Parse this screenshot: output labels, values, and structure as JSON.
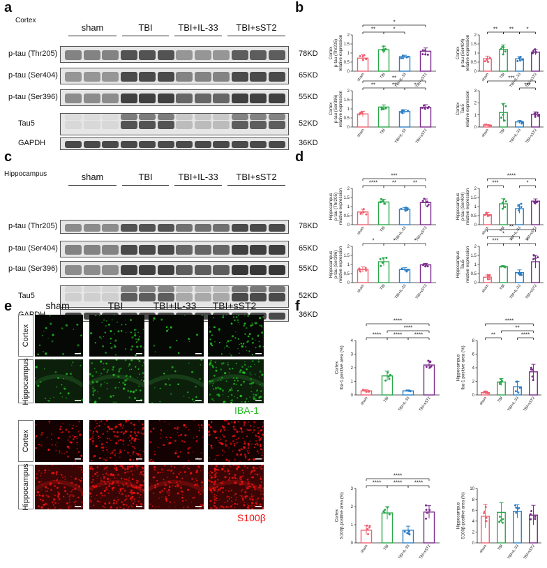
{
  "panels": {
    "a": "a",
    "b": "b",
    "c": "c",
    "d": "d",
    "e": "e",
    "f": "f"
  },
  "regions": {
    "cortex": "Cortex",
    "hippocampus": "Hippocampus"
  },
  "groups": [
    "sham",
    "TBI",
    "TBI+IL-33",
    "TBI+sST2"
  ],
  "blots": {
    "rows": [
      {
        "label": "p-tau (Thr205)",
        "kd": "78KD"
      },
      {
        "label": "p-tau (Ser404)",
        "kd": "65KD"
      },
      {
        "label": "p-tau (Ser396)",
        "kd": "55KD"
      },
      {
        "label": "Tau5",
        "kd": "52KD"
      },
      {
        "label": "GAPDH",
        "kd": "36KD"
      }
    ]
  },
  "micro": {
    "cortex_label": "Cortex",
    "hippocampus_label": "Hippocampus",
    "iba1": "IBA-1",
    "s100": "S100β",
    "iba_color": "#22bb22",
    "s100_color": "#ee1111"
  },
  "colors": {
    "sham": "#f06070",
    "TBI": "#2aa84a",
    "TBI+IL-33": "#2b7fc6",
    "TBI+sST2": "#7a2a8a"
  },
  "chart_data": [
    {
      "type": "bar",
      "panel": "b",
      "categories": [
        "sham",
        "TBI",
        "TBI+IL-33",
        "TBI+sST2"
      ],
      "ylabel": "Cortex p-tau (Thr205) relative expression",
      "ylim": [
        0,
        2.0
      ],
      "ticks": [
        0,
        0.5,
        1.0,
        1.5,
        2.0
      ],
      "values": [
        0.72,
        1.18,
        0.8,
        1.1
      ],
      "errors": [
        0.18,
        0.2,
        0.08,
        0.18
      ],
      "sig": [
        [
          0,
          1,
          "**"
        ],
        [
          1,
          2,
          "*"
        ],
        [
          0,
          3,
          "*"
        ]
      ]
    },
    {
      "type": "bar",
      "panel": "b",
      "categories": [
        "sham",
        "TBI",
        "TBI+IL-33",
        "TBI+sST2"
      ],
      "ylabel": "Cortex p-tau (Ser404) relative expression",
      "ylim": [
        0,
        2.0
      ],
      "ticks": [
        0,
        0.5,
        1.0,
        1.5,
        2.0
      ],
      "values": [
        0.68,
        1.2,
        0.68,
        1.05
      ],
      "errors": [
        0.15,
        0.25,
        0.12,
        0.15
      ],
      "sig": [
        [
          0,
          1,
          "**"
        ],
        [
          1,
          2,
          "**"
        ],
        [
          2,
          3,
          "*"
        ]
      ]
    },
    {
      "type": "bar",
      "panel": "b",
      "categories": [
        "sham",
        "TBI",
        "TBI+IL-33",
        "TBI+sST2"
      ],
      "ylabel": "Cortex p-tau (Ser396) relative expression",
      "ylim": [
        0,
        2.0
      ],
      "ticks": [
        0,
        0.5,
        1.0,
        1.5,
        2.0
      ],
      "values": [
        0.72,
        1.1,
        0.85,
        1.08
      ],
      "errors": [
        0.15,
        0.12,
        0.1,
        0.15
      ],
      "sig": [
        [
          0,
          1,
          "**"
        ],
        [
          1,
          2,
          "**"
        ],
        [
          2,
          3,
          "*"
        ],
        [
          0,
          3,
          "**"
        ]
      ]
    },
    {
      "type": "bar",
      "panel": "b",
      "categories": [
        "sham",
        "TBI",
        "TBI+IL-33",
        "TBI+sST2"
      ],
      "ylabel": "Cortex Tau5 relative expression",
      "ylim": [
        0,
        3
      ],
      "ticks": [
        0,
        1,
        2,
        3
      ],
      "values": [
        0.15,
        1.2,
        0.42,
        1.05
      ],
      "errors": [
        0.05,
        0.75,
        0.12,
        0.2
      ],
      "sig": [
        [
          0,
          3,
          "***"
        ],
        [
          2,
          3,
          "***"
        ]
      ]
    },
    {
      "type": "bar",
      "panel": "d",
      "categories": [
        "sham",
        "TBI",
        "TBI+IL-33",
        "TBI+sST2"
      ],
      "ylabel": "Hippocampus p-tau (Thr205) relative expression",
      "ylim": [
        0,
        2.0
      ],
      "ticks": [
        0,
        0.5,
        1.0,
        1.5,
        2.0
      ],
      "values": [
        0.7,
        1.25,
        0.85,
        1.22
      ],
      "errors": [
        0.15,
        0.15,
        0.1,
        0.2
      ],
      "sig": [
        [
          0,
          1,
          "****"
        ],
        [
          1,
          2,
          "**"
        ],
        [
          2,
          3,
          "**"
        ],
        [
          0,
          3,
          "***"
        ]
      ]
    },
    {
      "type": "bar",
      "panel": "d",
      "categories": [
        "sham",
        "TBI",
        "TBI+IL-33",
        "TBI+sST2"
      ],
      "ylabel": "Hippocampus p-tau (Ser404) relative expression",
      "ylim": [
        0,
        2.0
      ],
      "ticks": [
        0,
        0.5,
        1.0,
        1.5,
        2.0
      ],
      "values": [
        0.55,
        1.15,
        0.88,
        1.3
      ],
      "errors": [
        0.12,
        0.28,
        0.25,
        0.12
      ],
      "sig": [
        [
          0,
          1,
          "***"
        ],
        [
          2,
          3,
          "*"
        ],
        [
          0,
          3,
          "****"
        ]
      ]
    },
    {
      "type": "bar",
      "panel": "d",
      "categories": [
        "sham",
        "TBI",
        "TBI+IL-33",
        "TBI+sST2"
      ],
      "ylabel": "Hippocampus p-tau (Ser396) relative expression",
      "ylim": [
        0,
        2.0
      ],
      "ticks": [
        0,
        0.5,
        1.0,
        1.5,
        2.0
      ],
      "values": [
        0.72,
        1.15,
        0.72,
        0.98
      ],
      "errors": [
        0.15,
        0.22,
        0.1,
        0.08
      ],
      "sig": [
        [
          0,
          1,
          "*"
        ],
        [
          1,
          2,
          "*"
        ],
        [
          2,
          3,
          "*"
        ]
      ]
    },
    {
      "type": "bar",
      "panel": "d",
      "categories": [
        "sham",
        "TBI",
        "TBI+IL-33",
        "TBI+sST2"
      ],
      "ylabel": "Hippocampus Tau5 relative expression",
      "ylim": [
        0,
        2.0
      ],
      "ticks": [
        0,
        0.5,
        1.0,
        1.5,
        2.0
      ],
      "values": [
        0.3,
        0.88,
        0.55,
        1.15
      ],
      "errors": [
        0.12,
        0.05,
        0.15,
        0.35
      ],
      "sig": [
        [
          0,
          1,
          "***"
        ],
        [
          1,
          2,
          "*"
        ],
        [
          2,
          3,
          "*"
        ],
        [
          0,
          2,
          "*"
        ],
        [
          0,
          3,
          "**"
        ]
      ]
    },
    {
      "type": "bar",
      "panel": "f",
      "categories": [
        "sham",
        "TBI",
        "TBI+IL-33",
        "TBI+sST2"
      ],
      "ylabel": "Cortex Iba-1 positive area (%)",
      "ylim": [
        0,
        4
      ],
      "ticks": [
        0,
        1,
        2,
        3,
        4
      ],
      "values": [
        0.3,
        1.4,
        0.3,
        2.2
      ],
      "errors": [
        0.08,
        0.35,
        0.05,
        0.3
      ],
      "sig": [
        [
          0,
          1,
          "****"
        ],
        [
          1,
          2,
          "****"
        ],
        [
          2,
          3,
          "****"
        ],
        [
          1,
          3,
          "****"
        ],
        [
          0,
          3,
          "****"
        ]
      ]
    },
    {
      "type": "bar",
      "panel": "f",
      "categories": [
        "sham",
        "TBI",
        "TBI+IL-33",
        "TBI+sST2"
      ],
      "ylabel": "Hippocampus Iba-1 positive area (%)",
      "ylim": [
        0,
        8
      ],
      "ticks": [
        0,
        2,
        4,
        6,
        8
      ],
      "values": [
        0.35,
        1.9,
        1.2,
        3.4
      ],
      "errors": [
        0.2,
        0.5,
        0.8,
        1.1
      ],
      "sig": [
        [
          0,
          1,
          "**"
        ],
        [
          2,
          3,
          "****"
        ],
        [
          1,
          3,
          "**"
        ],
        [
          0,
          3,
          "****"
        ]
      ]
    },
    {
      "type": "bar",
      "panel": "f",
      "categories": [
        "sham",
        "TBI",
        "TBI+IL-33",
        "TBI+sST2"
      ],
      "ylabel": "Cortex S100β positive area (%)",
      "ylim": [
        0,
        3
      ],
      "ticks": [
        0,
        1,
        2,
        3
      ],
      "values": [
        0.7,
        1.65,
        0.7,
        1.7
      ],
      "errors": [
        0.25,
        0.35,
        0.22,
        0.35
      ],
      "sig": [
        [
          0,
          1,
          "****"
        ],
        [
          1,
          2,
          "****"
        ],
        [
          2,
          3,
          "****"
        ],
        [
          0,
          3,
          "****"
        ]
      ]
    },
    {
      "type": "bar",
      "panel": "f",
      "categories": [
        "sham",
        "TBI",
        "TBI+IL-33",
        "TBI+sST2"
      ],
      "ylabel": "Hippocampus S100β positive area (%)",
      "ylim": [
        0,
        10
      ],
      "ticks": [
        0,
        2,
        4,
        6,
        8,
        10
      ],
      "values": [
        4.9,
        5.6,
        5.8,
        5.1
      ],
      "errors": [
        2.2,
        1.8,
        1.2,
        1.8
      ],
      "sig": []
    }
  ]
}
